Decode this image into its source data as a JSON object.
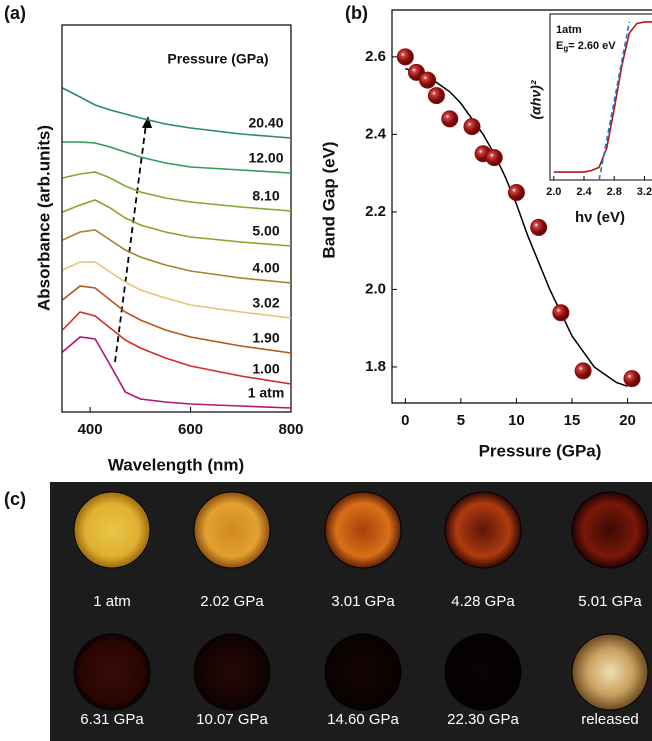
{
  "chart_data": [
    {
      "type": "line",
      "panel_label": "(a)",
      "xlabel": "Wavelength (nm)",
      "ylabel": "Absorbance (arb.units)",
      "legend_title": "Pressure (GPa)",
      "x": [
        345,
        380,
        410,
        440,
        470,
        500,
        550,
        600,
        700,
        800
      ],
      "xlim": [
        344,
        800
      ],
      "xticks": [
        400,
        600,
        800
      ],
      "ylim": [
        0,
        387
      ],
      "series": [
        {
          "name": "1 atm",
          "color": "#b5156e",
          "values": [
            60,
            75,
            73,
            47,
            20,
            13,
            10,
            8,
            6,
            4
          ]
        },
        {
          "name": "1.00",
          "color": "#d42a2a",
          "values": [
            82,
            100,
            96,
            84,
            72,
            64,
            54,
            46,
            36,
            28
          ]
        },
        {
          "name": "1.90",
          "color": "#b5561e",
          "values": [
            112,
            126,
            124,
            112,
            100,
            92,
            82,
            75,
            66,
            59
          ]
        },
        {
          "name": "3.02",
          "color": "#e8c27a",
          "values": [
            142,
            150,
            150,
            140,
            130,
            122,
            114,
            107,
            100,
            94
          ]
        },
        {
          "name": "4.00",
          "color": "#a8812a",
          "values": [
            172,
            180,
            182,
            172,
            162,
            155,
            147,
            141,
            134,
            129
          ]
        },
        {
          "name": "5.00",
          "color": "#9c9a2a",
          "values": [
            200,
            207,
            212,
            204,
            194,
            187,
            180,
            175,
            170,
            166
          ]
        },
        {
          "name": "8.10",
          "color": "#7fa83a",
          "values": [
            234,
            238,
            240,
            234,
            226,
            220,
            214,
            210,
            205,
            201
          ]
        },
        {
          "name": "12.00",
          "color": "#2f9a5a",
          "values": [
            270,
            270,
            269,
            265,
            260,
            255,
            249,
            245,
            242,
            239
          ]
        },
        {
          "name": "20.40",
          "color": "#2a8a6a",
          "values": [
            324,
            315,
            307,
            302,
            298,
            294,
            288,
            284,
            278,
            274
          ]
        }
      ]
    },
    {
      "type": "scatter",
      "panel_label": "(b)",
      "xlabel": "Pressure (GPa)",
      "ylabel": "Band Gap (eV)",
      "xlim": [
        -1.2,
        22.2
      ],
      "xticks": [
        0,
        5,
        10,
        15,
        20
      ],
      "ylim": [
        1.707,
        2.721
      ],
      "yticks": [
        1.8,
        {
          "value": 2,
          "label": "2.0"
        },
        2.2,
        2.4,
        2.6
      ],
      "x": [
        0,
        1,
        2,
        2.8,
        4,
        6,
        7,
        8,
        10,
        12,
        14,
        16,
        20.4
      ],
      "values": [
        2.6,
        2.56,
        2.54,
        2.5,
        2.44,
        2.42,
        2.35,
        2.34,
        2.25,
        2.16,
        1.94,
        1.79,
        1.77
      ],
      "color": "#8b0d0d",
      "fit": {
        "color": "#000000",
        "x": [
          0,
          1,
          2,
          3,
          4,
          5,
          6,
          7,
          8,
          9,
          10,
          11,
          12,
          13,
          14,
          15,
          16,
          17,
          18,
          19,
          20
        ],
        "values": [
          2.57,
          2.56,
          2.55,
          2.53,
          2.51,
          2.48,
          2.44,
          2.4,
          2.35,
          2.29,
          2.22,
          2.14,
          2.07,
          2,
          1.94,
          1.88,
          1.84,
          1.8,
          1.78,
          1.76,
          1.75
        ]
      }
    },
    {
      "type": "line",
      "inset": true,
      "xlabel": "hν (eV)",
      "ylabel": "(αhν)²",
      "annotation_1": "1atm",
      "annotation_2": "E",
      "annotation_2_sub": "g",
      "annotation_2_rest": "= 2.60 eV",
      "xlim": [
        1.95,
        3.3
      ],
      "xticks": [
        {
          "value": 2,
          "label": "2.0"
        },
        2.4,
        2.8,
        3.2
      ],
      "ylim": [
        0,
        1.05
      ],
      "series": [
        {
          "color": "#b01818",
          "x": [
            2,
            2.2,
            2.4,
            2.5,
            2.6,
            2.7,
            2.8,
            2.9,
            3,
            3.1,
            3.2,
            3.3
          ],
          "values": [
            0.05,
            0.05,
            0.05,
            0.06,
            0.08,
            0.2,
            0.45,
            0.72,
            0.93,
            0.99,
            1,
            1
          ]
        },
        {
          "color": "#1a7bd0",
          "dashed": true,
          "x": [
            2.6,
            3
          ],
          "values": [
            0,
            1
          ]
        }
      ]
    }
  ],
  "photos": {
    "panel_label": "(c)",
    "captions": [
      "1 atm",
      "2.02 GPa",
      "3.01 GPa",
      "4.28 GPa",
      "5.01 GPa",
      "6.31 GPa",
      "10.07 GPa",
      "14.60 GPa",
      "22.30 GPa",
      "released"
    ]
  }
}
